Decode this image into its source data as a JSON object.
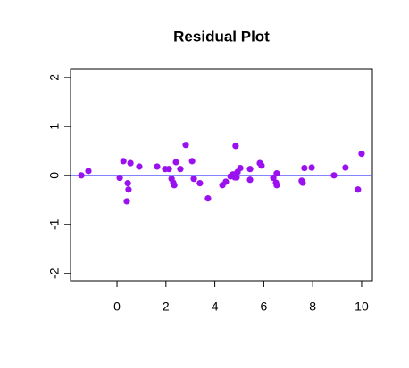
{
  "chart_data": {
    "type": "scatter",
    "title": "Residual Plot",
    "series": [
      {
        "color": "#9a10ee",
        "x": [
          -1.46,
          -1.17,
          0.11,
          0.26,
          0.4,
          0.44,
          0.47,
          0.55,
          0.91,
          1.64,
          1.97,
          2.12,
          2.23,
          2.3,
          2.34,
          2.41,
          2.59,
          2.81,
          3.07,
          3.14,
          3.39,
          3.72,
          4.31,
          4.45,
          4.64,
          4.74,
          4.82,
          4.85,
          4.89,
          4.93,
          5.04,
          5.44,
          5.44,
          5.84,
          5.91,
          6.39,
          6.5,
          6.53,
          6.53,
          7.55,
          7.59,
          7.66,
          7.96,
          8.87,
          9.34,
          9.85,
          10.0
        ],
        "values": [
          0,
          0.09,
          -0.05,
          0.29,
          -0.53,
          -0.16,
          -0.29,
          0.25,
          0.18,
          0.18,
          0.13,
          0.13,
          -0.07,
          -0.15,
          -0.2,
          0.27,
          0.13,
          0.62,
          0.29,
          -0.07,
          -0.16,
          -0.47,
          -0.2,
          -0.13,
          -0.02,
          0.02,
          -0.04,
          0.6,
          -0.04,
          0.07,
          0.15,
          -0.09,
          0.13,
          0.25,
          0.2,
          -0.05,
          -0.15,
          0.04,
          -0.2,
          -0.11,
          -0.15,
          0.15,
          0.16,
          0,
          0.16,
          -0.29,
          0.44
        ]
      }
    ],
    "reference_line": {
      "y": 0,
      "color": "#5b5bff"
    },
    "xlim": [
      -1.9,
      10.44
    ],
    "ylim": [
      -2.15,
      2.18
    ],
    "xticks": [
      0,
      2,
      4,
      6,
      8,
      10
    ],
    "yticks": [
      -2,
      -1,
      0,
      1,
      2
    ]
  }
}
